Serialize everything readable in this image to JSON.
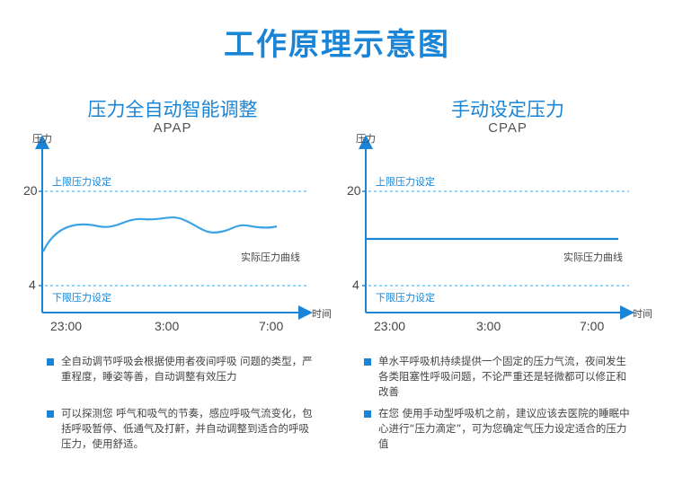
{
  "title": "工作原理示意图",
  "panels": [
    {
      "title": "压力全自动智能调整",
      "subtitle": "APAP",
      "y_axis_label": "压力",
      "x_axis_label": "时间",
      "upper_label": "上限压力设定",
      "lower_label": "下限压力设定",
      "curve_label": "实际压力曲线",
      "y_ticks": [
        "20",
        "4"
      ],
      "x_ticks": [
        "23:00",
        "3:00",
        "7:00"
      ],
      "bullets": [
        "全自动调节呼吸会根据使用者夜间呼吸 问题的类型，严重程度，睡姿等善，自动调整有效压力",
        "可以探测您 呼气和吸气的节奏，感应呼吸气流变化，包括呼吸暂停、低通气及打鼾，并自动调整到适合的呼吸压力，使用舒适。"
      ]
    },
    {
      "title": "手动设定压力",
      "subtitle": "CPAP",
      "y_axis_label": "压力",
      "x_axis_label": "时间",
      "upper_label": "上限压力设定",
      "lower_label": "下限压力设定",
      "curve_label": "实际压力曲线",
      "y_ticks": [
        "20",
        "4"
      ],
      "x_ticks": [
        "23:00",
        "3:00",
        "7:00"
      ],
      "bullets": [
        "单水平呼吸机持续提供一个固定的压力气流，夜间发生各类阻塞性呼吸问题，不论严重还是轻微都可以修正和改善",
        "在您 使用手动型呼吸机之前，建议应该去医院的睡眠中心进行“压力滴定”，可为您确定气压力设定适合的压力值"
      ]
    }
  ],
  "colors": {
    "accent": "#1a84d6",
    "curve": "#3ba3e6",
    "axis": "#1a84d6"
  }
}
